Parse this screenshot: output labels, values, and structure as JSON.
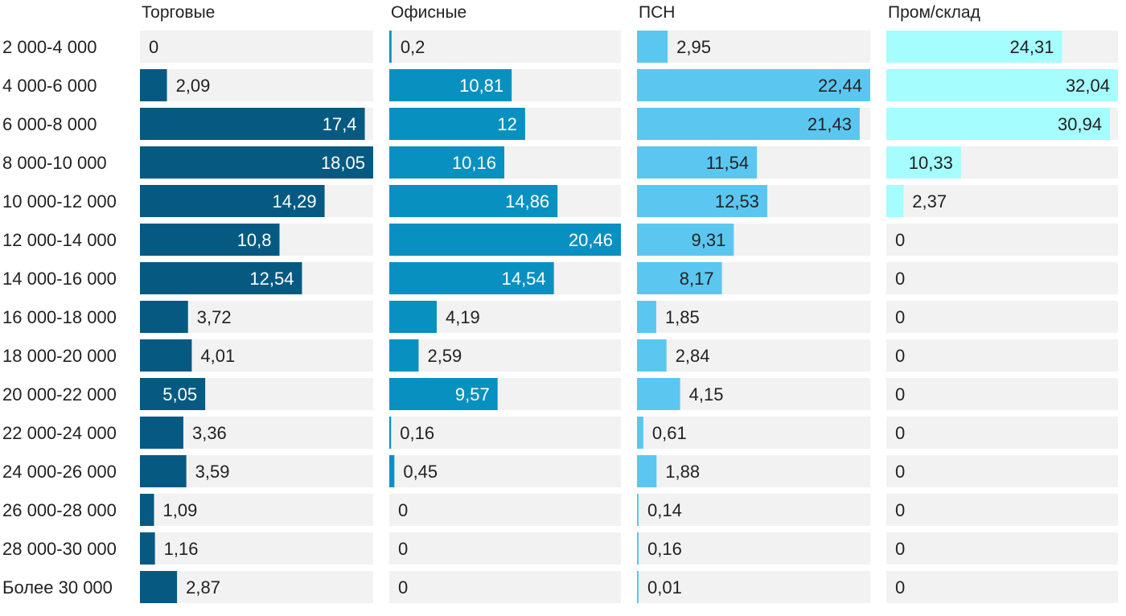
{
  "chart_data": {
    "type": "bar",
    "orientation": "horizontal",
    "layout": "small-multiples",
    "categories": [
      "2 000-4 000",
      "4 000-6 000",
      "6 000-8 000",
      "8 000-10 000",
      "10 000-12 000",
      "12 000-14 000",
      "14 000-16 000",
      "16 000-18 000",
      "18 000-20 000",
      "20 000-22 000",
      "22 000-24 000",
      "24 000-26 000",
      "26 000-28 000",
      "28 000-30 000",
      "Более 30 000"
    ],
    "series": [
      {
        "name": "Торговые",
        "color": "#065a82",
        "label_color_inside": "#ffffff",
        "labels": [
          "0",
          "2,09",
          "17,4",
          "18,05",
          "14,29",
          "10,8",
          "12,54",
          "3,72",
          "4,01",
          "5,05",
          "3,36",
          "3,59",
          "1,09",
          "1,16",
          "2,87"
        ],
        "values": [
          0,
          2.09,
          17.4,
          18.05,
          14.29,
          10.8,
          12.54,
          3.72,
          4.01,
          5.05,
          3.36,
          3.59,
          1.09,
          1.16,
          2.87
        ]
      },
      {
        "name": "Офисные",
        "color": "#0891c0",
        "label_color_inside": "#ffffff",
        "labels": [
          "0,2",
          "10,81",
          "12",
          "10,16",
          "14,86",
          "20,46",
          "14,54",
          "4,19",
          "2,59",
          "9,57",
          "0,16",
          "0,45",
          "0",
          "0",
          "0"
        ],
        "values": [
          0.2,
          10.81,
          12,
          10.16,
          14.86,
          20.46,
          14.54,
          4.19,
          2.59,
          9.57,
          0.16,
          0.45,
          0,
          0,
          0
        ]
      },
      {
        "name": "ПСН",
        "color": "#5bc7f1",
        "label_color_inside": "#222222",
        "labels": [
          "2,95",
          "22,44",
          "21,43",
          "11,54",
          "12,53",
          "9,31",
          "8,17",
          "1,85",
          "2,84",
          "4,15",
          "0,61",
          "1,88",
          "0,14",
          "0,16",
          "0,01"
        ],
        "values": [
          2.95,
          22.44,
          21.43,
          11.54,
          12.53,
          9.31,
          8.17,
          1.85,
          2.84,
          4.15,
          0.61,
          1.88,
          0.14,
          0.16,
          0.01
        ]
      },
      {
        "name": "Пром/склад",
        "color": "#a5fdfe",
        "label_color_inside": "#222222",
        "labels": [
          "24,31",
          "32,04",
          "30,94",
          "10,33",
          "2,37",
          "0",
          "0",
          "0",
          "0",
          "0",
          "0",
          "0",
          "0",
          "0",
          "0"
        ],
        "values": [
          24.31,
          32.04,
          30.94,
          10.33,
          2.37,
          0,
          0,
          0,
          0,
          0,
          0,
          0,
          0,
          0,
          0
        ]
      }
    ],
    "track_color": "#f2f2f2",
    "label_color_outside": "#222222",
    "grid": false,
    "legend": "none"
  }
}
